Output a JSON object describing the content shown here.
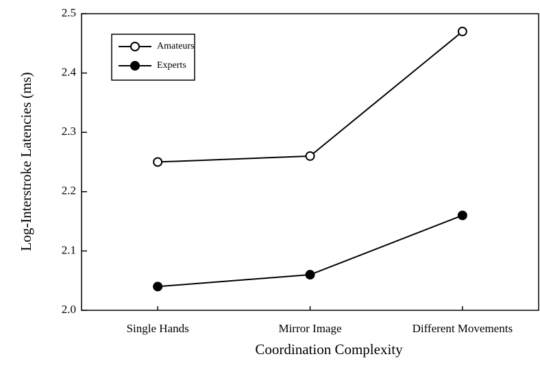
{
  "chart_data": {
    "type": "line",
    "xlabel": "Coordination Complexity",
    "ylabel": "Log-Interstroke Latencies (ms)",
    "categories": [
      "Single Hands",
      "Mirror Image",
      "Different Movements"
    ],
    "series": [
      {
        "name": "Amateurs",
        "color": "#000000",
        "marker_fill": "#ffffff",
        "values": [
          2.25,
          2.26,
          2.47
        ]
      },
      {
        "name": "Experts",
        "color": "#000000",
        "marker_fill": "#000000",
        "values": [
          2.04,
          2.06,
          2.16
        ]
      }
    ],
    "ylim": [
      2.0,
      2.5
    ],
    "yticks": [
      {
        "value": 2.0,
        "label": "2.0"
      },
      2.1,
      2.2,
      2.3,
      2.4,
      2.5
    ],
    "legend": "upper left"
  }
}
